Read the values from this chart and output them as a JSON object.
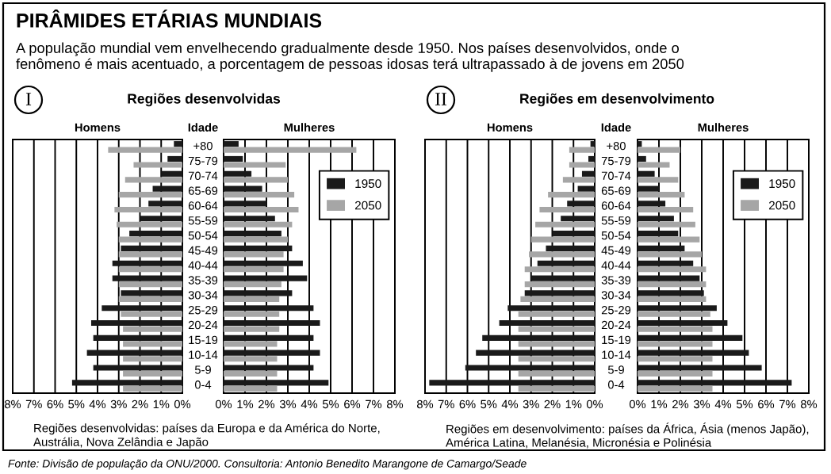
{
  "chart_data": [
    {
      "type": "bar",
      "orientation": "horizontal",
      "title": "Homens",
      "ylabel": "Idade",
      "categories": [
        "+80",
        "75-79",
        "70-74",
        "65-69",
        "60-64",
        "55-59",
        "50-54",
        "45-49",
        "40-44",
        "35-39",
        "30-34",
        "25-29",
        "20-24",
        "15-19",
        "10-14",
        "5-9",
        "0-4"
      ],
      "series": [
        {
          "color": "#1a1a1a",
          "values": [
            0.4,
            0.7,
            1.0,
            1.4,
            1.6,
            2.0,
            2.5,
            2.9,
            3.3,
            3.3,
            2.9,
            3.8,
            4.3,
            4.2,
            4.5,
            4.2,
            5.2
          ]
        },
        {
          "color": "#a6a6a6",
          "values": [
            3.5,
            2.3,
            2.7,
            3.0,
            3.2,
            3.1,
            3.0,
            3.0,
            3.0,
            3.0,
            3.0,
            2.9,
            2.8,
            2.8,
            2.8,
            2.8,
            2.8
          ]
        }
      ],
      "xlim": [
        8,
        0
      ],
      "xticks": [
        {
          "value": 8,
          "label": "8%"
        },
        {
          "value": 7,
          "label": "7%"
        },
        {
          "value": 6,
          "label": "6%"
        },
        {
          "value": 5,
          "label": "5%"
        },
        {
          "value": 4,
          "label": "4%"
        },
        {
          "value": 3,
          "label": "3%"
        },
        {
          "value": 2,
          "label": "2%"
        },
        {
          "value": 1,
          "label": "1%"
        },
        {
          "value": 0,
          "label": "0%"
        }
      ],
      "grid": "x",
      "legend": false,
      "annotations": [
        "I",
        "Regiões desenvolvidas",
        "Regiões desenvolvidas: países da Europa e da América do Norte,\nAustrália, Nova Zelândia e Japão",
        "Fonte: Divisão de população da ONU/2000. Consultoria: Antonio Benedito Marangone de Camargo/Seade",
        "PIRÂMIDES ETÁRIAS MUNDIAIS"
      ],
      "subtitle": "A população mundial vem envelhecendo gradualmente desde 1950. Nos países desenvolvidos, onde o\nfenômeno é mais acentuado, a porcentagem de pessoas idosas terá ultrapassado à de jovens em 2050"
    },
    {
      "type": "bar",
      "orientation": "horizontal",
      "title": "Mulheres",
      "tick_labels": "x",
      "categories": [
        null,
        null,
        null,
        null,
        null,
        null,
        null,
        null,
        null,
        null,
        null,
        null,
        null,
        null,
        null,
        null,
        null
      ],
      "series": [
        {
          "name": "1950",
          "color": "#1a1a1a",
          "values": [
            0.7,
            0.9,
            1.3,
            1.8,
            2.0,
            2.4,
            2.7,
            3.2,
            3.7,
            3.9,
            3.2,
            4.2,
            4.5,
            4.2,
            4.5,
            4.2,
            4.9
          ]
        },
        {
          "name": "2050",
          "color": "#a6a6a6",
          "values": [
            6.2,
            2.9,
            3.0,
            3.3,
            3.5,
            3.2,
            3.0,
            2.8,
            2.8,
            2.7,
            2.6,
            2.6,
            2.6,
            2.5,
            2.5,
            2.5,
            2.5
          ]
        }
      ],
      "xlim": [
        0,
        8
      ],
      "xticks": [
        {
          "value": 0,
          "label": "0%"
        },
        {
          "value": 1,
          "label": "1%"
        },
        {
          "value": 2,
          "label": "2%"
        },
        {
          "value": 3,
          "label": "3%"
        },
        {
          "value": 4,
          "label": "4%"
        },
        {
          "value": 5,
          "label": "5%"
        },
        {
          "value": 6,
          "label": "6%"
        },
        {
          "value": 7,
          "label": "7%"
        },
        {
          "value": 8,
          "label": "8%"
        }
      ],
      "grid": "x",
      "legend": "top right"
    },
    {
      "type": "bar",
      "orientation": "horizontal",
      "title": "Homens",
      "ylabel": "Idade",
      "categories": [
        "+80",
        "75-79",
        "70-74",
        "65-69",
        "60-64",
        "55-59",
        "50-54",
        "45-49",
        "40-44",
        "35-39",
        "30-34",
        "25-29",
        "20-24",
        "15-19",
        "10-14",
        "5-9",
        "0-4"
      ],
      "series": [
        {
          "color": "#1a1a1a",
          "values": [
            0.2,
            0.3,
            0.6,
            0.8,
            1.3,
            1.6,
            2.0,
            2.3,
            2.7,
            3.0,
            3.3,
            4.1,
            4.5,
            5.3,
            5.6,
            6.1,
            7.8
          ]
        },
        {
          "color": "#a6a6a6",
          "values": [
            1.2,
            1.2,
            1.5,
            2.2,
            2.6,
            2.8,
            3.0,
            3.1,
            3.3,
            3.3,
            3.5,
            3.6,
            3.6,
            3.6,
            3.6,
            3.6,
            3.6
          ]
        }
      ],
      "xlim": [
        8,
        0
      ],
      "xticks": [
        {
          "value": 8,
          "label": "8%"
        },
        {
          "value": 7,
          "label": "7%"
        },
        {
          "value": 6,
          "label": "6%"
        },
        {
          "value": 5,
          "label": "5%"
        },
        {
          "value": 4,
          "label": "4%"
        },
        {
          "value": 3,
          "label": "3%"
        },
        {
          "value": 2,
          "label": "2%"
        },
        {
          "value": 1,
          "label": "1%"
        },
        {
          "value": 0,
          "label": "0%"
        }
      ],
      "grid": "x",
      "legend": false,
      "annotations": [
        "II",
        "Regiões em desenvolvimento",
        "Regiões em desenvolvimento: países da África, Ásia (menos Japão),\nAmérica Latina, Melanésia, Micronésia e Polinésia"
      ]
    },
    {
      "type": "bar",
      "orientation": "horizontal",
      "title": "Mulheres",
      "tick_labels": "x",
      "categories": [
        null,
        null,
        null,
        null,
        null,
        null,
        null,
        null,
        null,
        null,
        null,
        null,
        null,
        null,
        null,
        null,
        null
      ],
      "series": [
        {
          "name": "1950",
          "color": "#1a1a1a",
          "values": [
            0.2,
            0.4,
            0.8,
            1.0,
            1.3,
            1.7,
            1.9,
            2.2,
            2.6,
            2.9,
            3.1,
            3.7,
            4.2,
            4.9,
            5.2,
            5.8,
            7.2
          ]
        },
        {
          "name": "2050",
          "color": "#a6a6a6",
          "values": [
            2.0,
            1.5,
            1.9,
            2.2,
            2.6,
            2.7,
            2.9,
            3.0,
            3.2,
            3.2,
            3.2,
            3.4,
            3.5,
            3.5,
            3.5,
            3.5,
            3.5
          ]
        }
      ],
      "xlim": [
        0,
        8
      ],
      "xticks": [
        {
          "value": 0,
          "label": "0%"
        },
        {
          "value": 1,
          "label": "1%"
        },
        {
          "value": 2,
          "label": "2%"
        },
        {
          "value": 3,
          "label": "3%"
        },
        {
          "value": 4,
          "label": "4%"
        },
        {
          "value": 5,
          "label": "5%"
        },
        {
          "value": 6,
          "label": "6%"
        },
        {
          "value": 7,
          "label": "7%"
        },
        {
          "value": 8,
          "label": "8%"
        }
      ],
      "grid": "x",
      "legend": "top right"
    }
  ]
}
